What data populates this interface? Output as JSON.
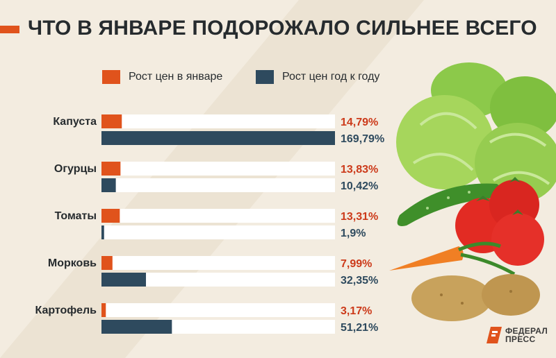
{
  "title": "ЧТО В ЯНВАРЕ ПОДОРОЖАЛО СИЛЬНЕЕ ВСЕГО",
  "colors": {
    "january": "#e0531c",
    "yoy": "#2e4a5e",
    "track": "#ffffff",
    "label_january": "#cc3a1a",
    "label_yoy": "#2e4a5e",
    "background": "#f3ece0"
  },
  "legend": {
    "january": "Рост цен в январе",
    "yoy": "Рост цен год к году"
  },
  "logo": {
    "line1": "ФЕДЕРАЛ",
    "line2": "ПРЕСС"
  },
  "chart_data": {
    "type": "bar",
    "orientation": "horizontal",
    "title": "ЧТО В ЯНВАРЕ ПОДОРОЖАЛО СИЛЬНЕЕ ВСЕГО",
    "categories": [
      "Капуста",
      "Огурцы",
      "Томаты",
      "Морковь",
      "Картофель"
    ],
    "series": [
      {
        "name": "Рост цен в январе",
        "values": [
          14.79,
          13.83,
          13.31,
          7.99,
          3.17
        ],
        "labels": [
          "14,79%",
          "13,83%",
          "13,31%",
          "7,99%",
          "3,17%"
        ]
      },
      {
        "name": "Рост цен год к году",
        "values": [
          169.79,
          10.42,
          1.9,
          32.35,
          51.21
        ],
        "labels": [
          "169,79%",
          "10,42%",
          "1,9%",
          "32,35%",
          "51,21%"
        ]
      }
    ],
    "xlim": [
      0,
      169.79
    ],
    "grid": false,
    "legend_position": "top"
  }
}
